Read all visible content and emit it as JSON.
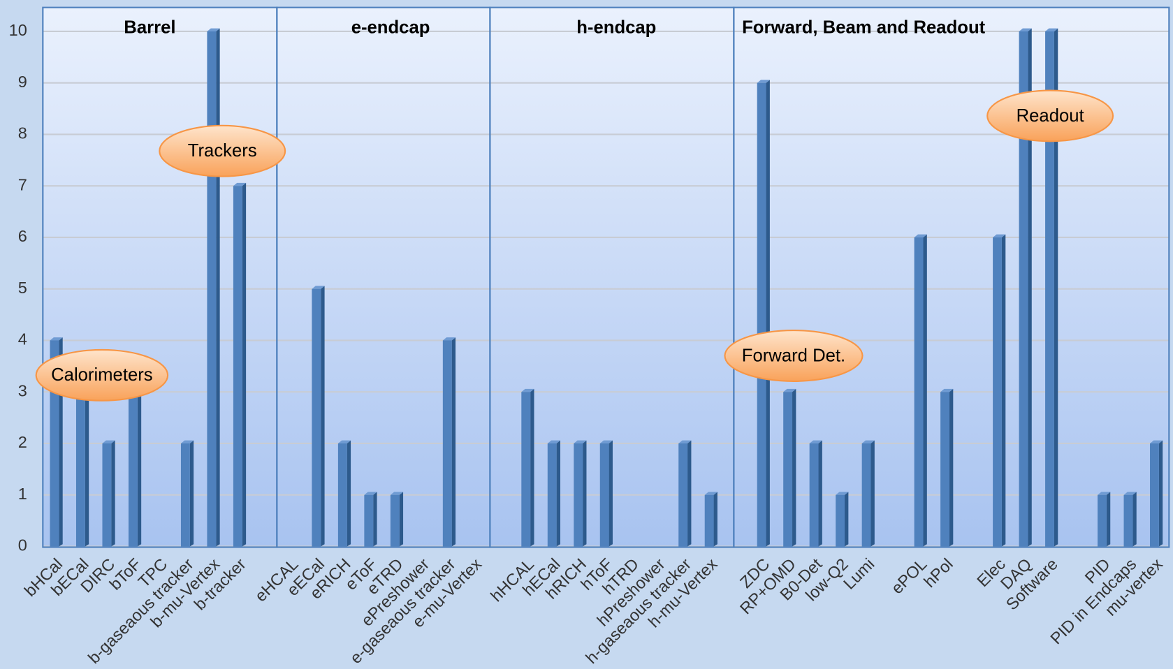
{
  "chart_data": {
    "type": "bar",
    "sections": [
      "Barrel",
      "e-endcap",
      "h-endcap",
      "Forward, Beam and Readout"
    ],
    "annotations": [
      "Calorimeters",
      "Trackers",
      "Forward Det.",
      "Readout"
    ],
    "categories": [
      "bHCal",
      "bECal",
      "DIRC",
      "bToF",
      "TPC",
      "b-gaseaous tracker",
      "b-mu-Vertex",
      "b-tracker",
      null,
      "eHCAL",
      "eECal",
      "eRICH",
      "eToF",
      "eTRD",
      "ePreshower",
      "e-gaseaous tracker",
      "e-mu-Vertex",
      null,
      "hHCAL",
      "hECal",
      "hRICH",
      "hToF",
      "hTRD",
      "hPreshower",
      "h-gaseaous tracker",
      "h-mu-Vertex",
      null,
      "ZDC",
      "RP+OMD",
      "B0-Det",
      "low-Q2",
      "Lumi",
      null,
      "ePOL",
      "hPol",
      null,
      "Elec",
      "DAQ",
      "Software",
      null,
      "PID",
      "PID in Endcaps",
      "mu-vertex"
    ],
    "values": [
      4,
      3,
      2,
      3,
      0,
      2,
      10,
      7,
      null,
      0,
      5,
      2,
      1,
      1,
      0,
      4,
      0,
      null,
      3,
      2,
      2,
      2,
      0,
      0,
      2,
      1,
      null,
      9,
      3,
      2,
      1,
      2,
      null,
      6,
      3,
      null,
      6,
      10,
      10,
      null,
      1,
      1,
      2
    ],
    "color": "#4f81bd",
    "ylim": [
      0,
      10
    ],
    "yticks": [
      0,
      1,
      2,
      3,
      4,
      5,
      6,
      7,
      8,
      9,
      10
    ],
    "grid": true
  }
}
